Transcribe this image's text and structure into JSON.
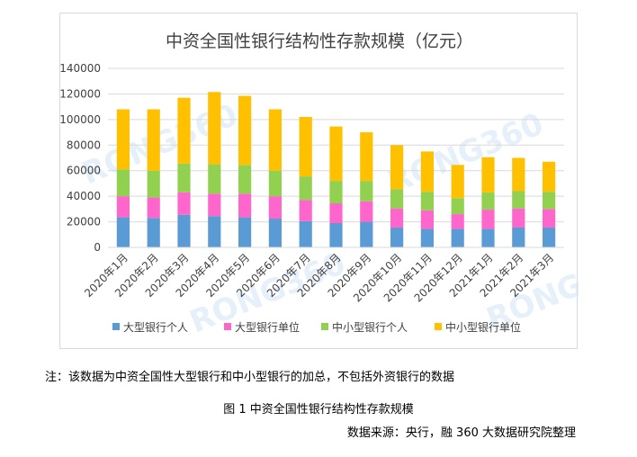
{
  "chart_data": {
    "type": "bar",
    "stacked": true,
    "title": "中资全国性银行结构性存款规模（亿元）",
    "categories": [
      "2020年1月",
      "2020年2月",
      "2020年3月",
      "2020年4月",
      "2020年5月",
      "2020年6月",
      "2020年7月",
      "2020年8月",
      "2020年9月",
      "2020年10月",
      "2020年11月",
      "2020年12月",
      "2021年1月",
      "2021年2月",
      "2021年3月"
    ],
    "series": [
      {
        "name": "大型银行个人",
        "color": "#5b9bd5",
        "values": [
          23500,
          23000,
          25500,
          24500,
          23500,
          22500,
          20500,
          19000,
          20000,
          15500,
          14500,
          14500,
          14500,
          15500,
          15500
        ]
      },
      {
        "name": "大型银行单位",
        "color": "#ff66cc",
        "values": [
          16500,
          16000,
          17500,
          17500,
          18500,
          17500,
          16500,
          15500,
          16000,
          15000,
          14500,
          11500,
          15000,
          15000,
          14500
        ]
      },
      {
        "name": "中小型银行个人",
        "color": "#92d050",
        "values": [
          21000,
          21000,
          22500,
          23000,
          22500,
          20000,
          18500,
          17500,
          16000,
          15000,
          14500,
          12500,
          13500,
          13500,
          13500
        ]
      },
      {
        "name": "中小型银行单位",
        "color": "#ffc000",
        "values": [
          47000,
          48000,
          51500,
          56500,
          54000,
          48000,
          46500,
          42500,
          38000,
          34500,
          31500,
          26000,
          27500,
          26000,
          23500
        ]
      }
    ],
    "ylim": [
      0,
      140000
    ],
    "yticks": [
      "0",
      "20000",
      "40000",
      "60000",
      "80000",
      "100000",
      "120000",
      "140000"
    ],
    "grid": true,
    "legend": "bottom",
    "watermark": "RONG360"
  },
  "note": "注：该数据为中资全国性大型银行和中小型银行的加总，不包括外资银行的数据",
  "caption": "图 1  中资全国性银行结构性存款规模",
  "source": "数据来源：央行，融 360 大数据研究院整理"
}
